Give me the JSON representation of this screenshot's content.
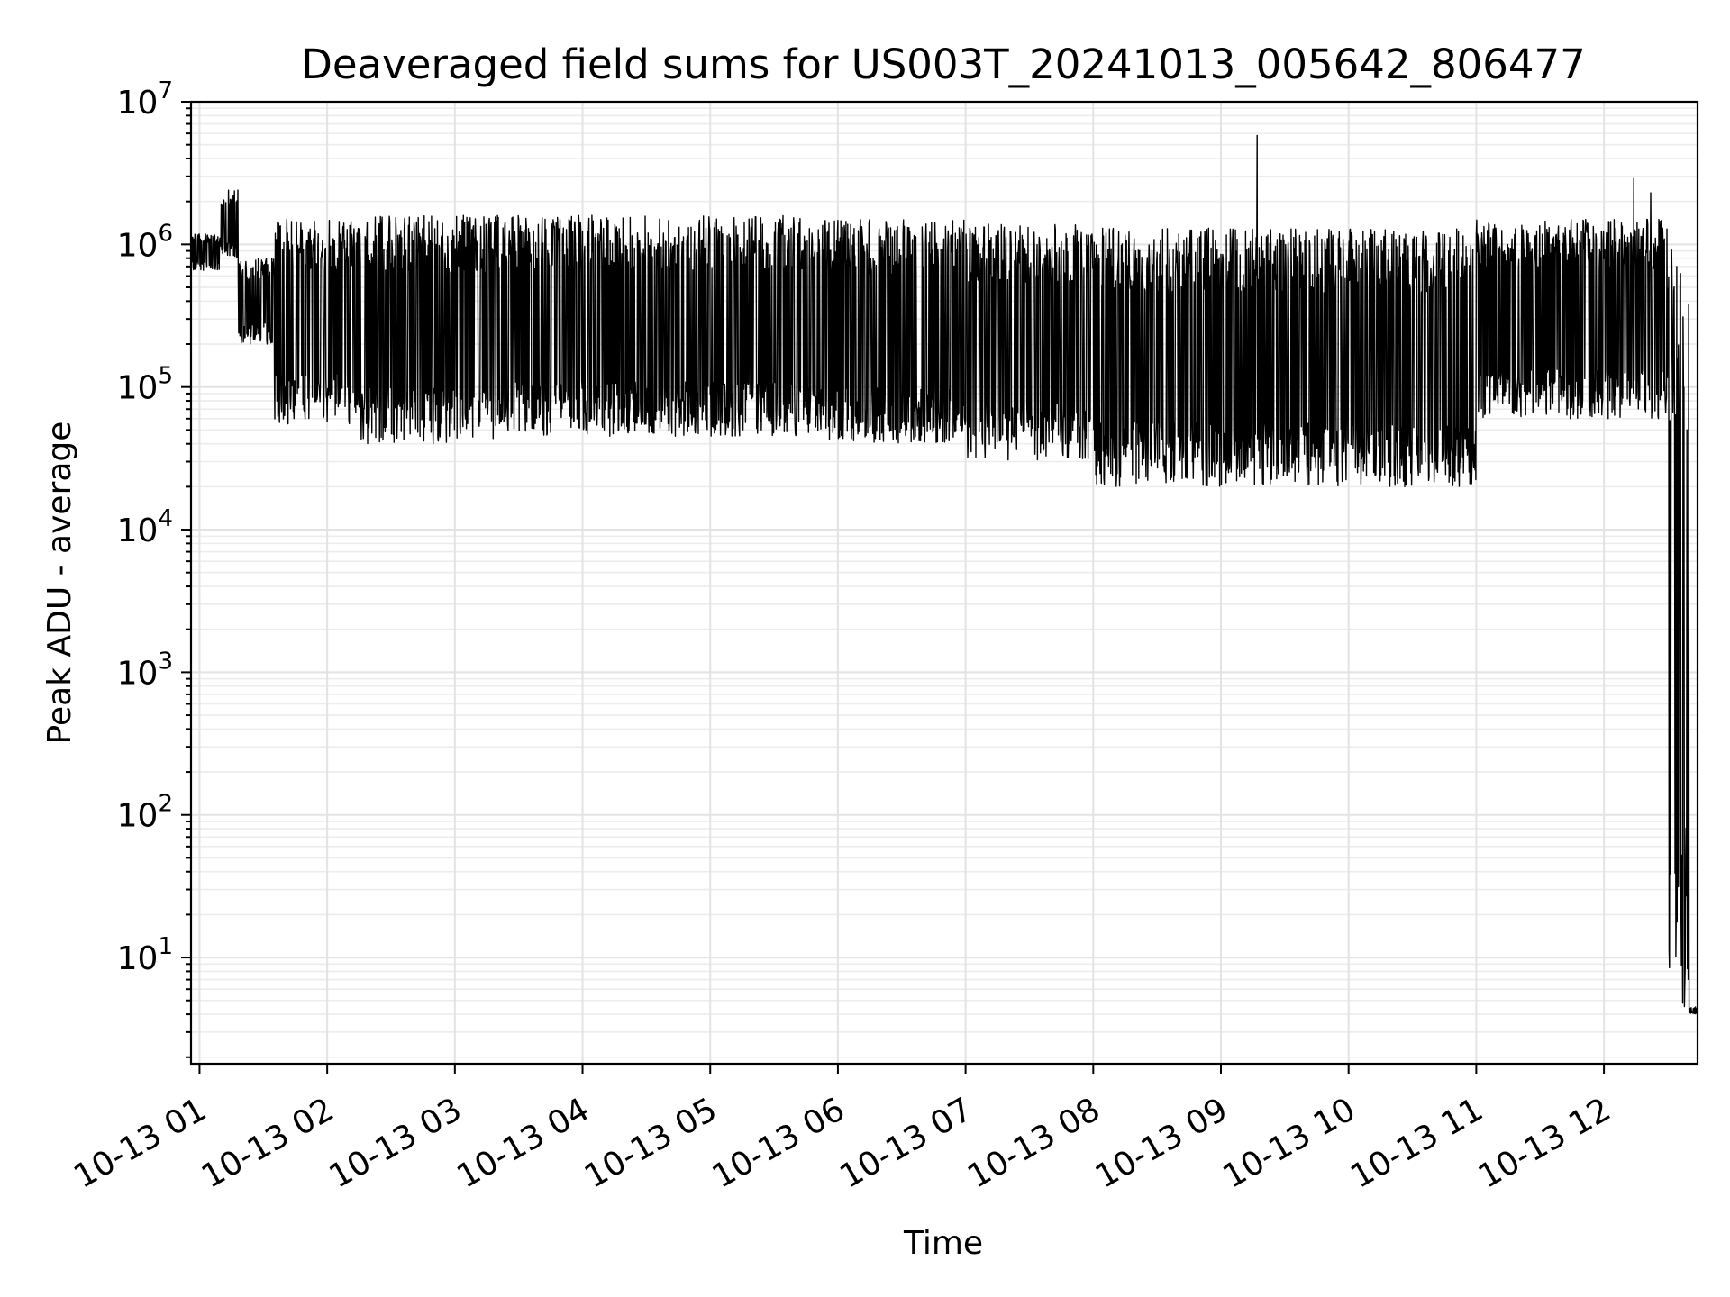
{
  "chart_data": {
    "type": "line",
    "title": "Deaveraged field sums for US003T_20241013_005642_806477",
    "xlabel": "Time",
    "ylabel": "Peak ADU - average",
    "yscale": "log",
    "xlim": [
      "2024-10-13 00:56",
      "2024-10-13 12:44"
    ],
    "ylim": [
      1.8,
      10000000
    ],
    "grid": "major and minor",
    "x_tick_labels": [
      "10-13 01",
      "10-13 02",
      "10-13 03",
      "10-13 04",
      "10-13 05",
      "10-13 06",
      "10-13 07",
      "10-13 08",
      "10-13 09",
      "10-13 10",
      "10-13 11",
      "10-13 12"
    ],
    "y_tick_labels": [
      {
        "base": "10",
        "exp": "1"
      },
      {
        "base": "10",
        "exp": "2"
      },
      {
        "base": "10",
        "exp": "3"
      },
      {
        "base": "10",
        "exp": "4"
      },
      {
        "base": "10",
        "exp": "5"
      },
      {
        "base": "10",
        "exp": "6"
      },
      {
        "base": "10",
        "exp": "7"
      }
    ],
    "series": [
      {
        "color": "#000000",
        "description_segments": [
          {
            "from": "2024-10-13 00:56",
            "to": "2024-10-13 01:10",
            "low": 650000,
            "high": 1200000
          },
          {
            "from": "2024-10-13 01:10",
            "to": "2024-10-13 01:18",
            "low": 800000,
            "high": 2400000
          },
          {
            "from": "2024-10-13 01:18",
            "to": "2024-10-13 01:35",
            "low": 200000,
            "high": 800000
          },
          {
            "from": "2024-10-13 01:35",
            "to": "2024-10-13 02:15",
            "low": 55000,
            "high": 1500000
          },
          {
            "from": "2024-10-13 02:15",
            "to": "2024-10-13 03:20",
            "low": 40000,
            "high": 1600000
          },
          {
            "from": "2024-10-13 03:20",
            "to": "2024-10-13 05:55",
            "low": 45000,
            "high": 1600000
          },
          {
            "from": "2024-10-13 05:55",
            "to": "2024-10-13 07:00",
            "low": 40000,
            "high": 1500000
          },
          {
            "from": "2024-10-13 07:00",
            "to": "2024-10-13 08:00",
            "low": 30000,
            "high": 1400000
          },
          {
            "from": "2024-10-13 08:00",
            "to": "2024-10-13 11:00",
            "low": 20000,
            "high": 1300000
          },
          {
            "from": "2024-10-13 11:00",
            "to": "2024-10-13 12:30",
            "low": 60000,
            "high": 1500000
          },
          {
            "from": "2024-10-13 12:30",
            "to": "2024-10-13 12:40",
            "low": 4,
            "high": 1000000
          },
          {
            "from": "2024-10-13 12:40",
            "to": "2024-10-13 12:44",
            "low": 4,
            "high": 4.5
          }
        ],
        "spikes": [
          {
            "x": "2024-10-13 01:18",
            "y": 2400000
          },
          {
            "x": "2024-10-13 09:17",
            "y": 5800000
          },
          {
            "x": "2024-10-13 12:14",
            "y": 2900000
          },
          {
            "x": "2024-10-13 12:22",
            "y": 2300000
          }
        ]
      }
    ]
  }
}
